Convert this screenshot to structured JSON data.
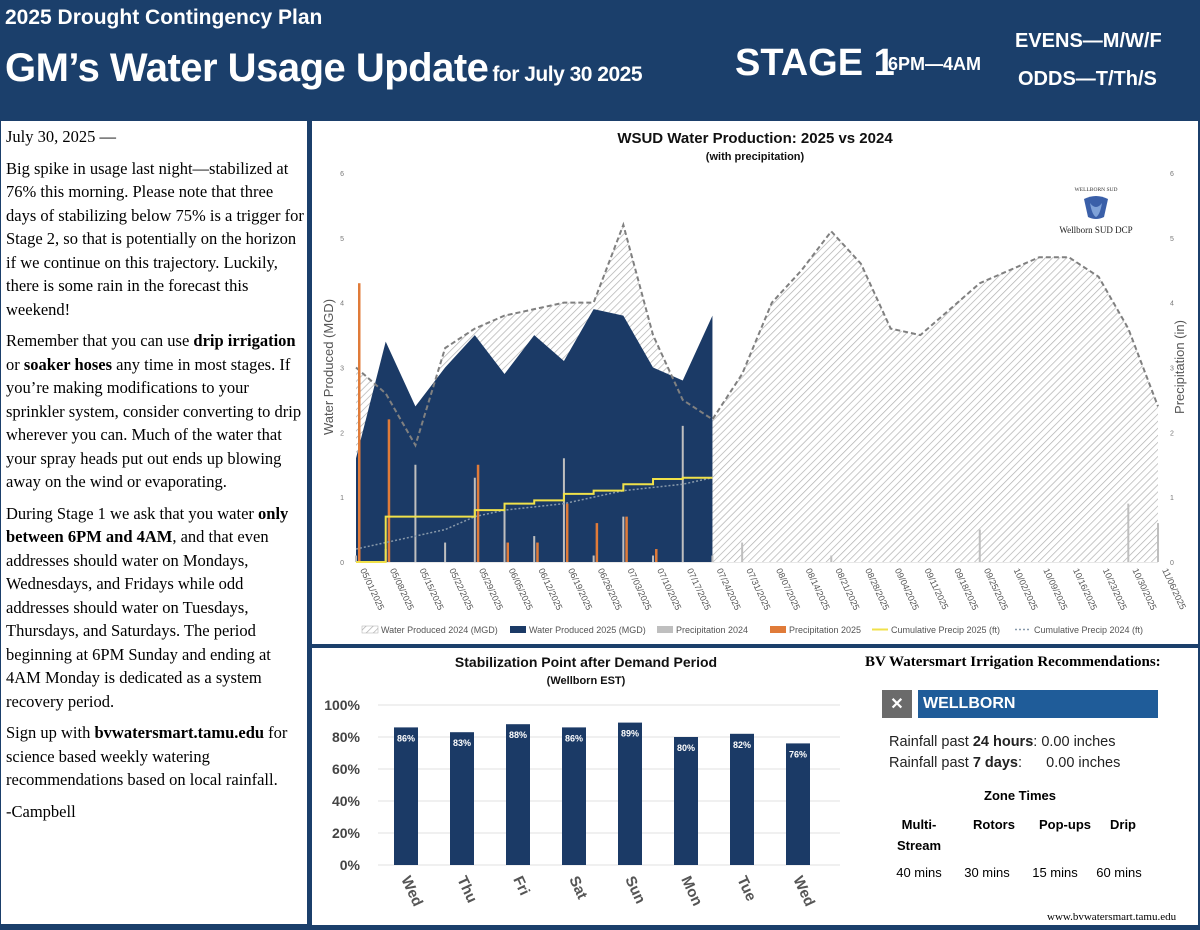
{
  "header": {
    "plan": "2025 Drought Contingency Plan",
    "title": "GM’s Water Usage Update",
    "title_sub": "for July 30 2025",
    "stage": "STAGE 1",
    "hours": "6PM—4AM",
    "evens": "EVENS—M/W/F",
    "odds": "ODDS—T/Th/S"
  },
  "letter": {
    "date": "July 30, 2025 —",
    "p1": "Big spike in usage last night—stabilized at 76% this morning.  Please note that three days of stabilizing below 75% is a trigger for Stage 2, so that is potentially on the horizon if we continue on this trajectory.  Luckily, there is some rain in the forecast this weekend!",
    "p2_a": "Remember that you can use ",
    "p2_b": "drip irrigation",
    "p2_c": " or ",
    "p2_d": "soaker hoses",
    "p2_e": " any time in most stages.  If you’re making modifications to your sprinkler system, consider converting to drip wherever you can.  Much of the water that your spray heads put out ends up blowing away on the wind or evaporating.",
    "p3_a": "During Stage 1 we ask that you water ",
    "p3_b": "only between 6PM and 4AM",
    "p3_c": ", and that even addresses should water on Mondays, Wednesdays, and Fridays while odd addresses should water on Tuesdays, Thursdays, and Saturdays.  The period beginning at 6PM Sunday and ending at 4AM Monday is dedicated as a system recovery period.",
    "p4_a": "Sign up with ",
    "p4_b": "bvwatersmart.tamu.edu",
    "p4_c": " for science based weekly watering recommendations based on local rainfall.",
    "sign": "-Campbell"
  },
  "chart_data": [
    {
      "type": "area",
      "title": "WSUD Water Production: 2025 vs 2024",
      "subtitle": "(with precipitation)",
      "ylabel": "Water Produced (MGD)",
      "y2label": "Precipitation (in)",
      "ylim": [
        0,
        6
      ],
      "y2lim": [
        0,
        6
      ],
      "yticks": [
        0,
        1,
        2,
        3,
        4,
        5,
        6
      ],
      "grid": false,
      "legend_position": "bottom",
      "logo_text": "WELLBORN SUD",
      "logo_caption": "Wellborn SUD DCP",
      "x_labels": [
        "05/01/2025",
        "05/08/2025",
        "05/15/2025",
        "05/22/2025",
        "05/29/2025",
        "06/05/2025",
        "06/12/2025",
        "06/19/2025",
        "06/26/2025",
        "07/03/2025",
        "07/10/2025",
        "07/17/2025",
        "07/24/2025",
        "07/31/2025",
        "08/07/2025",
        "08/14/2025",
        "08/21/2025",
        "08/28/2025",
        "09/04/2025",
        "09/11/2025",
        "09/18/2025",
        "09/25/2025",
        "10/02/2025",
        "10/09/2025",
        "10/16/2025",
        "10/23/2025",
        "10/30/2025",
        "11/06/2025"
      ],
      "legend": [
        "Water Produced 2024 (MGD)",
        "Water Produced 2025 (MGD)",
        "Precipitation 2024",
        "Precipitation 2025",
        "Cumulative Precip 2025 (ft)",
        "Cumulative Precip 2024 (ft)"
      ],
      "colors": {
        "wp2024": "#bfbfbf",
        "wp2025": "#1b3a66",
        "p2024": "#bfbfbf",
        "p2025": "#e07b39",
        "cum2025": "#f0e14a",
        "cum2024": "#8899aa",
        "line2024": "#808080"
      },
      "series": [
        {
          "name": "Water Produced 2024 (MGD)",
          "values": [
            3.0,
            2.6,
            1.8,
            3.3,
            3.6,
            3.8,
            3.9,
            4.0,
            4.0,
            5.2,
            3.5,
            2.5,
            2.2,
            2.9,
            4.0,
            4.5,
            5.1,
            4.6,
            3.6,
            3.5,
            3.9,
            4.3,
            4.5,
            4.7,
            4.7,
            4.4,
            3.6,
            2.4
          ]
        },
        {
          "name": "Water Produced 2025 (MGD)",
          "values": [
            1.6,
            3.4,
            2.4,
            3.0,
            3.5,
            2.9,
            3.5,
            3.1,
            3.9,
            3.8,
            3.0,
            2.8,
            3.8
          ]
        },
        {
          "name": "Precipitation 2024",
          "values": [
            0.1,
            0.2,
            1.5,
            0.3,
            1.3,
            0.8,
            0.4,
            1.6,
            0.1,
            0.7,
            0.1,
            2.1,
            0.1,
            0.3,
            0.0,
            0.0,
            0.1,
            0.0,
            0.0,
            0.0,
            0.0,
            0.5,
            0.0,
            0.0,
            0.0,
            0.0,
            0.9,
            0.6
          ]
        },
        {
          "name": "Precipitation 2025",
          "values": [
            4.3,
            2.2,
            0.0,
            0.0,
            1.5,
            0.3,
            0.3,
            0.9,
            0.6,
            0.7,
            0.2,
            0.0,
            0.0
          ]
        },
        {
          "name": "Cumulative Precip 2025 (ft)",
          "values": [
            0.0,
            0.7,
            0.7,
            0.7,
            0.8,
            0.9,
            0.95,
            1.05,
            1.1,
            1.2,
            1.28,
            1.3,
            1.3
          ]
        },
        {
          "name": "Cumulative Precip 2024 (ft)",
          "values": [
            0.2,
            0.3,
            0.4,
            0.5,
            0.7,
            0.8,
            0.85,
            0.9,
            1.0,
            1.1,
            1.15,
            1.2,
            1.3
          ]
        }
      ]
    },
    {
      "type": "bar",
      "title": "Stabilization Point after Demand Period",
      "subtitle": "(Wellborn EST)",
      "categories": [
        "Wed",
        "Thu",
        "Fri",
        "Sat",
        "Sun",
        "Mon",
        "Tue",
        "Wed"
      ],
      "values": [
        86,
        83,
        88,
        86,
        89,
        80,
        82,
        76
      ],
      "labels": [
        "86%",
        "83%",
        "88%",
        "86%",
        "89%",
        "80%",
        "82%",
        "76%"
      ],
      "yticks": [
        "0%",
        "20%",
        "40%",
        "60%",
        "80%",
        "100%"
      ],
      "ylim": [
        0,
        100
      ],
      "color": "#1b3a66"
    }
  ],
  "recommendations": {
    "title": "BV Watersmart Irrigation Recommendations:",
    "close": "✕",
    "location": "WELLBORN",
    "r24_label": "Rainfall past ",
    "r24_bold": "24 hours",
    "r24_val": ": 0.00 inches",
    "r7_label": "Rainfall past ",
    "r7_bold": "7 days",
    "r7_val": ":      0.00 inches",
    "zone_title": "Zone Times",
    "zones": [
      {
        "name": "Multi-Stream",
        "time": "40 mins"
      },
      {
        "name": "Rotors",
        "time": "30 mins"
      },
      {
        "name": "Pop-ups",
        "time": "15 mins"
      },
      {
        "name": "Drip",
        "time": "60 mins"
      }
    ],
    "url": "www.bvwatersmart.tamu.edu"
  }
}
